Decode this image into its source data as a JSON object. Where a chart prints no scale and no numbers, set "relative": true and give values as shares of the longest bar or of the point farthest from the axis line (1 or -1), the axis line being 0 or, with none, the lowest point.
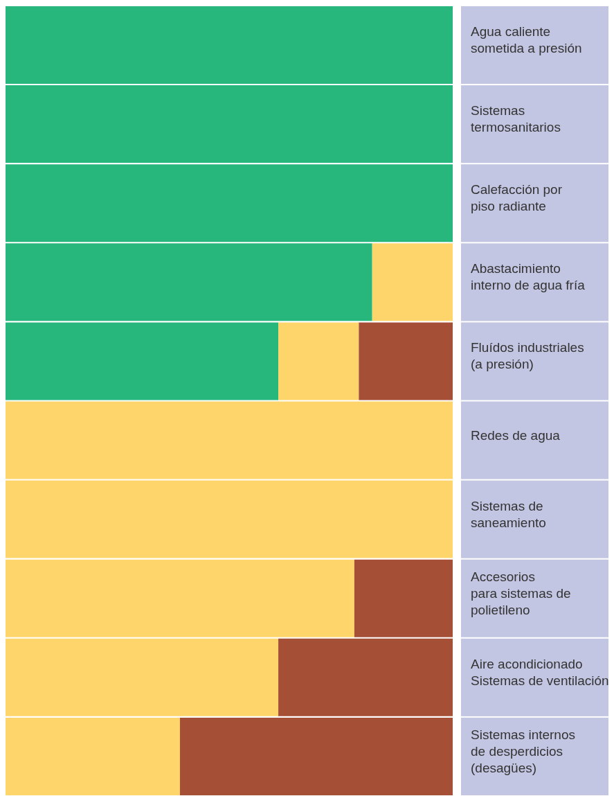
{
  "chart_data": {
    "type": "bar",
    "orientation": "horizontal",
    "stacked": true,
    "relative": true,
    "categories": [
      "Agua caliente\nsometida a presión",
      "Sistemas\ntermosanitarios",
      "Calefacción por\npiso radiante",
      "Abastacimiento\ninterno de agua fría",
      "Fluídos industriales\n(a presión)",
      "Redes de agua",
      "Sistemas de\nsaneamiento",
      "Accesorios\npara sistemas de\npolietileno",
      "Aire acondicionado\nSistemas de ventilación",
      "Sistemas internos\nde desperdicios\n(desagües)"
    ],
    "series": [
      {
        "color": "#27b67c",
        "values": [
          1,
          1,
          1,
          0.82,
          0.61,
          0,
          0,
          0,
          0,
          0
        ]
      },
      {
        "color": "#fdd56a",
        "values": [
          0,
          0,
          0,
          0.18,
          0.18,
          1,
          1,
          0.78,
          0.61,
          0.39
        ]
      },
      {
        "color": "#a54f36",
        "values": [
          0,
          0,
          0,
          0,
          0.21,
          0,
          0,
          0.22,
          0.39,
          0.61
        ]
      }
    ]
  }
}
